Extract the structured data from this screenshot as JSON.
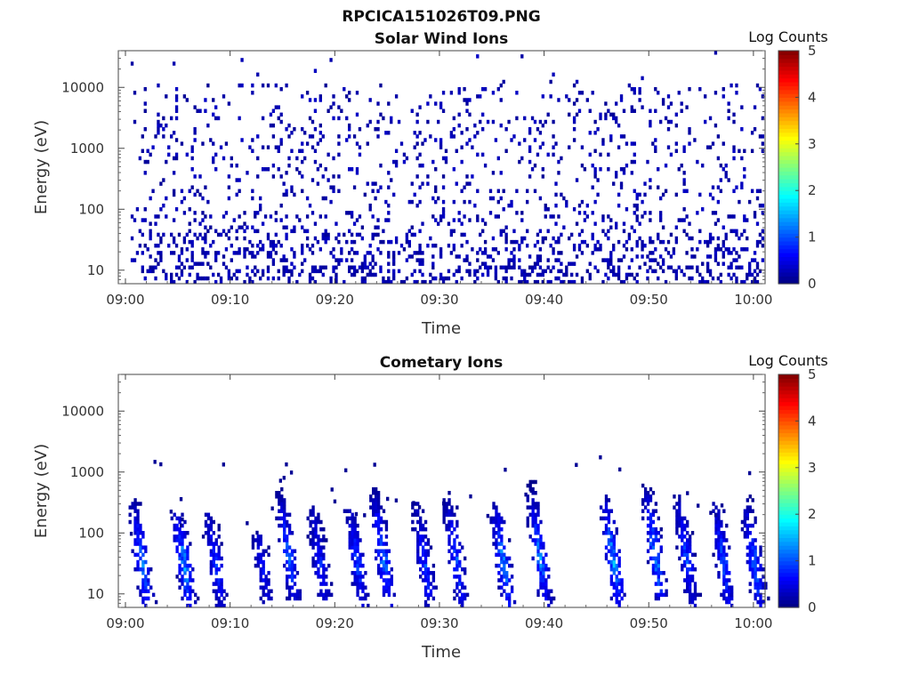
{
  "figure_title": "RPCICA151026T09.PNG",
  "colorbar": {
    "label": "Log Counts",
    "range": [
      0,
      5
    ],
    "ticks": [
      "0",
      "1",
      "2",
      "3",
      "4",
      "5"
    ],
    "colormap": "jet"
  },
  "chart_data": [
    {
      "type": "heatmap",
      "title": "Solar Wind Ions",
      "xlabel": "Time",
      "ylabel": "Energy (eV)",
      "x_range": [
        "09:00",
        "10:01"
      ],
      "y_scale": "log",
      "ylim": [
        6,
        40000
      ],
      "xticks": [
        "09:00",
        "09:10",
        "09:20",
        "09:30",
        "09:40",
        "09:50",
        "10:00"
      ],
      "yticks": [
        "10",
        "100",
        "1000",
        "10000"
      ],
      "description_values": {
        "dominant_log_counts": 0.1,
        "energy_band_dense_eV": [
          6,
          100
        ],
        "energy_band_sparse_eV": [
          100,
          12000
        ]
      }
    },
    {
      "type": "heatmap",
      "title": "Cometary Ions",
      "xlabel": "Time",
      "ylabel": "Energy (eV)",
      "x_range": [
        "09:00",
        "10:01"
      ],
      "y_scale": "log",
      "ylim": [
        6,
        40000
      ],
      "xticks": [
        "09:00",
        "09:10",
        "09:20",
        "09:30",
        "09:40",
        "09:50",
        "10:00"
      ],
      "yticks": [
        "10",
        "100",
        "1000",
        "10000"
      ],
      "bursts": [
        {
          "time_min": 1.5,
          "peak_eV": 30,
          "top_eV": 400,
          "peak_log": 1.6
        },
        {
          "time_min": 5.5,
          "peak_eV": 30,
          "top_eV": 200,
          "peak_log": 1.8
        },
        {
          "time_min": 8.5,
          "peak_eV": 30,
          "top_eV": 200,
          "peak_log": 1.1
        },
        {
          "time_min": 13.0,
          "peak_eV": 25,
          "top_eV": 100,
          "peak_log": 0.8
        },
        {
          "time_min": 15.5,
          "peak_eV": 40,
          "top_eV": 500,
          "peak_log": 1.4
        },
        {
          "time_min": 18.5,
          "peak_eV": 30,
          "top_eV": 250,
          "peak_log": 1.0
        },
        {
          "time_min": 22.0,
          "peak_eV": 35,
          "top_eV": 300,
          "peak_log": 1.2
        },
        {
          "time_min": 24.5,
          "peak_eV": 40,
          "top_eV": 600,
          "peak_log": 1.6
        },
        {
          "time_min": 28.5,
          "peak_eV": 30,
          "top_eV": 300,
          "peak_log": 1.2
        },
        {
          "time_min": 31.5,
          "peak_eV": 35,
          "top_eV": 400,
          "peak_log": 1.3
        },
        {
          "time_min": 36.0,
          "peak_eV": 30,
          "top_eV": 300,
          "peak_log": 1.7
        },
        {
          "time_min": 39.5,
          "peak_eV": 40,
          "top_eV": 800,
          "peak_log": 1.6
        },
        {
          "time_min": 46.5,
          "peak_eV": 35,
          "top_eV": 400,
          "peak_log": 1.9
        },
        {
          "time_min": 50.5,
          "peak_eV": 45,
          "top_eV": 600,
          "peak_log": 1.8
        },
        {
          "time_min": 53.5,
          "peak_eV": 40,
          "top_eV": 400,
          "peak_log": 1.2
        },
        {
          "time_min": 57.0,
          "peak_eV": 35,
          "top_eV": 300,
          "peak_log": 1.3
        },
        {
          "time_min": 60.0,
          "peak_eV": 30,
          "top_eV": 400,
          "peak_log": 1.5
        }
      ]
    }
  ]
}
